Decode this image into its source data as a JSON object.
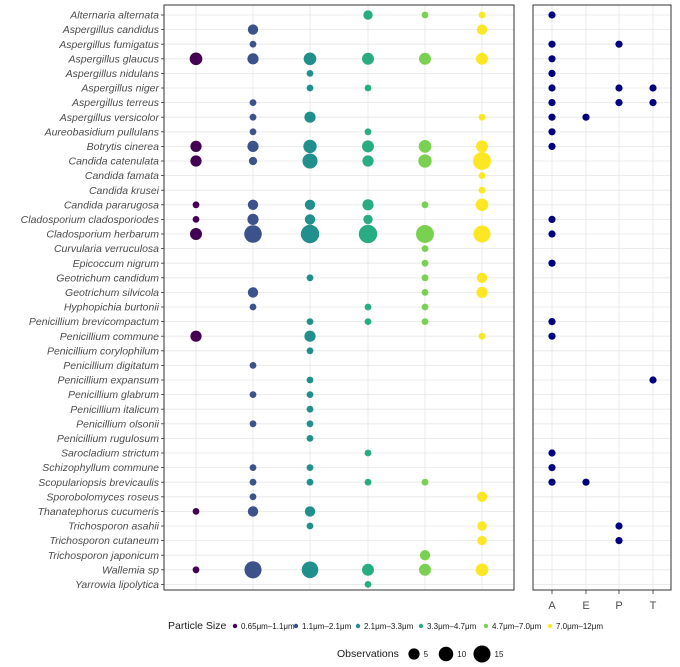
{
  "chart_data": [
    {
      "type": "scatter",
      "panel": "particle-size",
      "species": [
        "Alternaria alternata",
        "Aspergillus candidus",
        "Aspergillus fumigatus",
        "Aspergillus glaucus",
        "Aspergillus nidulans",
        "Aspergillus niger",
        "Aspergillus terreus",
        "Aspergillus versicolor",
        "Aureobasidium pullulans",
        "Botrytis cinerea",
        "Candida catenulata",
        "Candida famata",
        "Candida krusei",
        "Candida pararugosa",
        "Cladosporium cladosporiodes",
        "Cladosporium herbarum",
        "Curvularia verruculosa",
        "Epicoccum nigrum",
        "Geotrichum candidum",
        "Geotrichum silvicola",
        "Hyphopichia burtonii",
        "Penicillium brevicompactum",
        "Penicillium commune",
        "Penicillium corylophilum",
        "Penicillium digitatum",
        "Penicillium expansum",
        "Penicillium glabrum",
        "Penicillium italicum",
        "Penicillium olsonii",
        "Penicillium rugulosum",
        "Sarocladium strictum",
        "Schizophyllum commune",
        "Scopulariopsis brevicaulis",
        "Sporobolomyces roseus",
        "Thanatephorus cucumeris",
        "Trichosporon asahii",
        "Trichosporon cutaneum",
        "Trichosporon japonicum",
        "Wallemia sp",
        "Yarrowia lipolytica"
      ],
      "size_classes": [
        {
          "name": "0.65μm–1.1μm",
          "color": "#440154"
        },
        {
          "name": "1.1μm–2.1μm",
          "color": "#3b528b"
        },
        {
          "name": "2.1μm–3.3μm",
          "color": "#21908c"
        },
        {
          "name": "3.3μm–4.7μm",
          "color": "#27ad81"
        },
        {
          "name": "4.7μm–7.0μm",
          "color": "#7ad151"
        },
        {
          "name": "7.0μm–12μm",
          "color": "#fde725"
        }
      ],
      "observations": [
        [
          0,
          0,
          0,
          3,
          1,
          1
        ],
        [
          0,
          4,
          0,
          0,
          0,
          4
        ],
        [
          0,
          1,
          0,
          0,
          0,
          0
        ],
        [
          7,
          5,
          7,
          6,
          6,
          6
        ],
        [
          0,
          0,
          1,
          0,
          0,
          0
        ],
        [
          0,
          0,
          1,
          1,
          0,
          0
        ],
        [
          0,
          1,
          0,
          0,
          0,
          0
        ],
        [
          0,
          1,
          5,
          0,
          0,
          1
        ],
        [
          0,
          1,
          0,
          1,
          0,
          0
        ],
        [
          5,
          5,
          8,
          6,
          7,
          6
        ],
        [
          5,
          2,
          11,
          5,
          8,
          17
        ],
        [
          0,
          0,
          0,
          0,
          0,
          1
        ],
        [
          0,
          0,
          0,
          0,
          0,
          1
        ],
        [
          1,
          4,
          4,
          5,
          1,
          7
        ],
        [
          1,
          5,
          4,
          3,
          0,
          0
        ],
        [
          6,
          16,
          18,
          18,
          17,
          15
        ],
        [
          0,
          0,
          0,
          0,
          1,
          0
        ],
        [
          0,
          0,
          0,
          0,
          1,
          0
        ],
        [
          0,
          0,
          1,
          0,
          1,
          4
        ],
        [
          0,
          4,
          0,
          0,
          1,
          5
        ],
        [
          0,
          1,
          0,
          1,
          1,
          0
        ],
        [
          0,
          0,
          1,
          1,
          1,
          0
        ],
        [
          5,
          0,
          5,
          0,
          0,
          1
        ],
        [
          0,
          0,
          1,
          0,
          0,
          0
        ],
        [
          0,
          1,
          0,
          0,
          0,
          0
        ],
        [
          0,
          0,
          1,
          0,
          0,
          0
        ],
        [
          0,
          1,
          1,
          0,
          0,
          0
        ],
        [
          0,
          0,
          1,
          0,
          0,
          0
        ],
        [
          0,
          1,
          1,
          0,
          0,
          0
        ],
        [
          0,
          0,
          1,
          0,
          0,
          0
        ],
        [
          0,
          0,
          0,
          1,
          0,
          0
        ],
        [
          0,
          1,
          1,
          0,
          0,
          0
        ],
        [
          0,
          1,
          1,
          1,
          1,
          0
        ],
        [
          0,
          1,
          0,
          0,
          0,
          4
        ],
        [
          1,
          4,
          4,
          0,
          0,
          0
        ],
        [
          0,
          0,
          1,
          0,
          0,
          3
        ],
        [
          0,
          0,
          0,
          0,
          0,
          3
        ],
        [
          0,
          0,
          0,
          0,
          4,
          0
        ],
        [
          1,
          15,
          14,
          6,
          6,
          7
        ],
        [
          0,
          0,
          0,
          1,
          0,
          0
        ]
      ]
    },
    {
      "type": "scatter",
      "panel": "categories",
      "categories": [
        "A",
        "E",
        "P",
        "T"
      ],
      "point_color": "#000080",
      "points": [
        [
          "Alternaria alternata",
          "A"
        ],
        [
          "Aspergillus fumigatus",
          "A"
        ],
        [
          "Aspergillus fumigatus",
          "P"
        ],
        [
          "Aspergillus glaucus",
          "A"
        ],
        [
          "Aspergillus nidulans",
          "A"
        ],
        [
          "Aspergillus niger",
          "A"
        ],
        [
          "Aspergillus niger",
          "P"
        ],
        [
          "Aspergillus niger",
          "T"
        ],
        [
          "Aspergillus terreus",
          "A"
        ],
        [
          "Aspergillus terreus",
          "P"
        ],
        [
          "Aspergillus terreus",
          "T"
        ],
        [
          "Aspergillus versicolor",
          "A"
        ],
        [
          "Aspergillus versicolor",
          "E"
        ],
        [
          "Aureobasidium pullulans",
          "A"
        ],
        [
          "Botrytis cinerea",
          "A"
        ],
        [
          "Cladosporium cladosporiodes",
          "A"
        ],
        [
          "Cladosporium herbarum",
          "A"
        ],
        [
          "Epicoccum nigrum",
          "A"
        ],
        [
          "Penicillium brevicompactum",
          "A"
        ],
        [
          "Penicillium commune",
          "A"
        ],
        [
          "Penicillium expansum",
          "T"
        ],
        [
          "Sarocladium strictum",
          "A"
        ],
        [
          "Schizophyllum commune",
          "A"
        ],
        [
          "Scopulariopsis brevicaulis",
          "A"
        ],
        [
          "Scopulariopsis brevicaulis",
          "E"
        ],
        [
          "Trichosporon asahii",
          "P"
        ],
        [
          "Trichosporon cutaneum",
          "P"
        ]
      ]
    }
  ],
  "legend": {
    "color_title": "Particle Size",
    "size_title": "Observations",
    "size_breaks": [
      5,
      10,
      15
    ]
  }
}
